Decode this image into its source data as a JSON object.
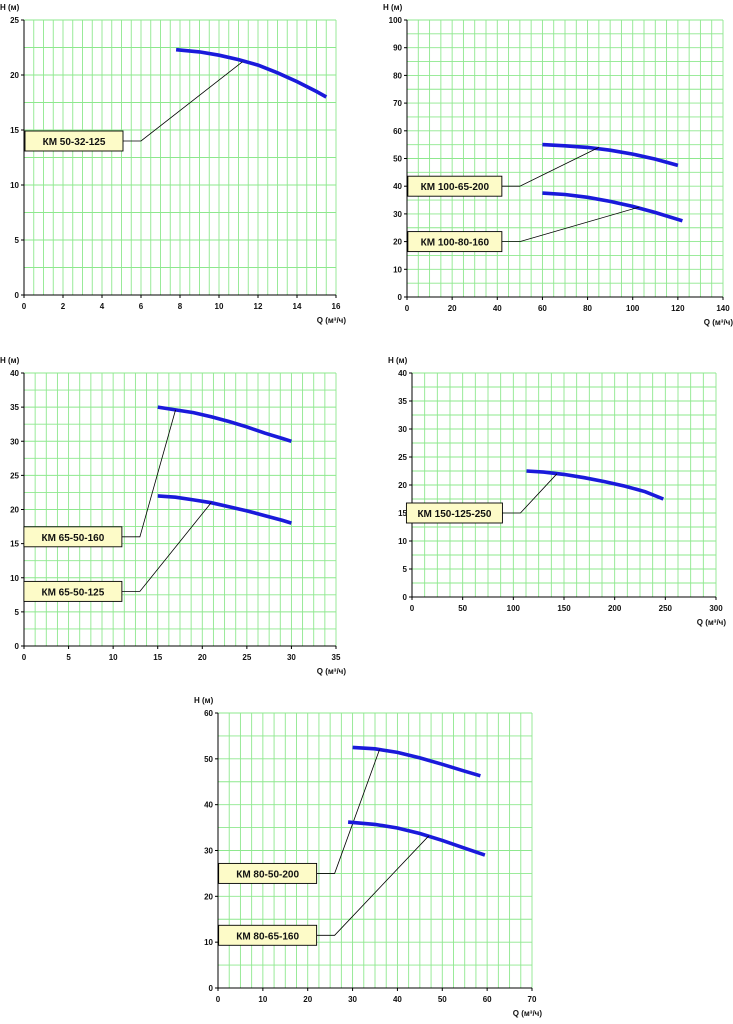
{
  "style": {
    "grid_color": "#8ee88e",
    "curve_color": "#1a1adb",
    "label_bg": "#fdfbc8",
    "axis_color": "#000000"
  },
  "chart_data": [
    {
      "type": "line",
      "xlabel": "Q (м³/ч)",
      "ylabel": "H (м)",
      "xlim": [
        0,
        16
      ],
      "ylim": [
        0,
        25
      ],
      "x_ticks": [
        0,
        2,
        4,
        6,
        8,
        10,
        12,
        14,
        16
      ],
      "y_ticks": [
        0,
        5,
        10,
        15,
        20,
        25
      ],
      "grid": true,
      "series": [
        {
          "name": "КМ 50-32-125",
          "points": [
            [
              7.8,
              22.3
            ],
            [
              9,
              22.1
            ],
            [
              10,
              21.8
            ],
            [
              11,
              21.4
            ],
            [
              12,
              20.9
            ],
            [
              13,
              20.2
            ],
            [
              14,
              19.4
            ],
            [
              15,
              18.5
            ],
            [
              15.5,
              18.0
            ]
          ],
          "callout": {
            "anchor": [
              11.2,
              21.2
            ],
            "label_pos": [
              6,
              14
            ]
          }
        }
      ]
    },
    {
      "type": "line",
      "xlabel": "Q (м³/ч)",
      "ylabel": "H (м)",
      "xlim": [
        0,
        140
      ],
      "ylim": [
        0,
        100
      ],
      "x_ticks": [
        0,
        20,
        40,
        60,
        80,
        100,
        120,
        140
      ],
      "y_ticks": [
        0,
        10,
        20,
        30,
        40,
        50,
        60,
        70,
        80,
        90,
        100
      ],
      "grid": true,
      "series": [
        {
          "name": "КМ 100-65-200",
          "points": [
            [
              60,
              55
            ],
            [
              70,
              54.6
            ],
            [
              80,
              54
            ],
            [
              90,
              53
            ],
            [
              100,
              51.6
            ],
            [
              110,
              49.8
            ],
            [
              120,
              47.5
            ]
          ],
          "callout": {
            "anchor": [
              85,
              54
            ],
            "label_pos": [
              50,
              40
            ]
          }
        },
        {
          "name": "КМ 100-80-160",
          "points": [
            [
              60,
              37.5
            ],
            [
              70,
              37
            ],
            [
              80,
              36
            ],
            [
              90,
              34.5
            ],
            [
              100,
              32.7
            ],
            [
              110,
              30.5
            ],
            [
              122,
              27.5
            ]
          ],
          "callout": {
            "anchor": [
              103,
              32.5
            ],
            "label_pos": [
              50,
              20
            ]
          }
        }
      ]
    },
    {
      "type": "line",
      "xlabel": "Q (м³/ч)",
      "ylabel": "H (м)",
      "xlim": [
        0,
        35
      ],
      "ylim": [
        0,
        40
      ],
      "x_ticks": [
        0,
        5,
        10,
        15,
        20,
        25,
        30,
        35
      ],
      "y_ticks": [
        0,
        5,
        10,
        15,
        20,
        25,
        30,
        35,
        40
      ],
      "grid": true,
      "series": [
        {
          "name": "КМ 65-50-160",
          "points": [
            [
              15,
              35
            ],
            [
              17,
              34.6
            ],
            [
              19,
              34.2
            ],
            [
              21,
              33.6
            ],
            [
              23,
              32.9
            ],
            [
              25,
              32.1
            ],
            [
              27,
              31.2
            ],
            [
              29,
              30.4
            ],
            [
              30,
              30
            ]
          ],
          "callout": {
            "anchor": [
              17,
              34.6
            ],
            "label_pos": [
              13,
              16
            ]
          }
        },
        {
          "name": "КМ 65-50-125",
          "points": [
            [
              15,
              22
            ],
            [
              17,
              21.8
            ],
            [
              19,
              21.4
            ],
            [
              21,
              21
            ],
            [
              23,
              20.4
            ],
            [
              25,
              19.8
            ],
            [
              27,
              19.1
            ],
            [
              29,
              18.4
            ],
            [
              30,
              18
            ]
          ],
          "callout": {
            "anchor": [
              21,
              21
            ],
            "label_pos": [
              13,
              8
            ]
          }
        }
      ]
    },
    {
      "type": "line",
      "xlabel": "Q (м³/ч)",
      "ylabel": "H (м)",
      "xlim": [
        0,
        300
      ],
      "ylim": [
        0,
        40
      ],
      "x_ticks": [
        0,
        50,
        100,
        150,
        200,
        250,
        300
      ],
      "y_ticks": [
        0,
        5,
        10,
        15,
        20,
        25,
        30,
        35,
        40
      ],
      "grid": true,
      "series": [
        {
          "name": "КМ 150-125-250",
          "points": [
            [
              113,
              22.5
            ],
            [
              130,
              22.3
            ],
            [
              150,
              21.9
            ],
            [
              170,
              21.3
            ],
            [
              190,
              20.6
            ],
            [
              210,
              19.8
            ],
            [
              230,
              18.8
            ],
            [
              248,
              17.5
            ]
          ],
          "callout": {
            "anchor": [
              143,
              22
            ],
            "label_pos": [
              107,
              15
            ]
          }
        }
      ]
    },
    {
      "type": "line",
      "xlabel": "Q (м³/ч)",
      "ylabel": "H (м)",
      "xlim": [
        0,
        70
      ],
      "ylim": [
        0,
        60
      ],
      "x_ticks": [
        0,
        10,
        20,
        30,
        40,
        50,
        60,
        70
      ],
      "y_ticks": [
        0,
        10,
        20,
        30,
        40,
        50,
        60
      ],
      "grid": true,
      "series": [
        {
          "name": "КМ 80-50-200",
          "points": [
            [
              30,
              52.5
            ],
            [
              35,
              52.2
            ],
            [
              40,
              51.4
            ],
            [
              45,
              50.2
            ],
            [
              50,
              48.8
            ],
            [
              55,
              47.3
            ],
            [
              58.5,
              46.3
            ]
          ],
          "callout": {
            "anchor": [
              36,
              52
            ],
            "label_pos": [
              26,
              25
            ]
          }
        },
        {
          "name": "КМ 80-65-160",
          "points": [
            [
              29,
              36.2
            ],
            [
              35,
              35.7
            ],
            [
              40,
              34.9
            ],
            [
              45,
              33.7
            ],
            [
              50,
              32.2
            ],
            [
              55,
              30.5
            ],
            [
              59.5,
              29
            ]
          ],
          "callout": {
            "anchor": [
              47,
              33.2
            ],
            "label_pos": [
              26,
              11.5
            ]
          }
        }
      ]
    }
  ]
}
